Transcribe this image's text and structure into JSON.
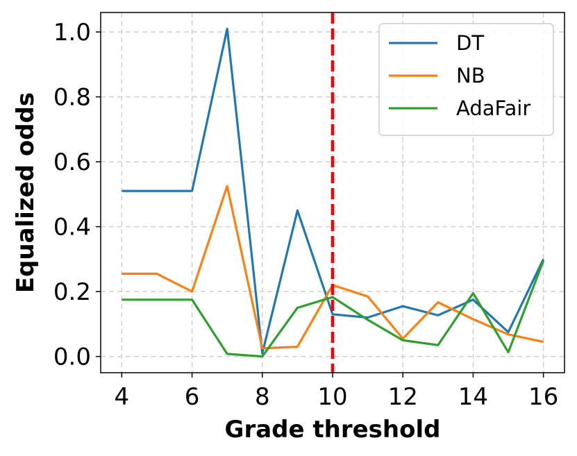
{
  "chart_data": {
    "type": "line",
    "title": "",
    "xlabel": "Grade threshold",
    "ylabel": "Equalized odds",
    "xlim": [
      3.4,
      16.6
    ],
    "ylim": [
      -0.05,
      1.06
    ],
    "xticks": [
      4,
      6,
      8,
      10,
      12,
      14,
      16
    ],
    "yticks": [
      0.0,
      0.2,
      0.4,
      0.6,
      0.8,
      1.0
    ],
    "xtick_labels": [
      "4",
      "6",
      "8",
      "10",
      "12",
      "14",
      "16"
    ],
    "ytick_labels": [
      "0.0",
      "0.2",
      "0.4",
      "0.6",
      "0.8",
      "1.0"
    ],
    "grid": true,
    "legend_position": "top-right",
    "x": [
      4,
      5,
      6,
      7,
      8,
      9,
      10,
      11,
      12,
      13,
      14,
      15,
      16
    ],
    "series": [
      {
        "name": "DT",
        "color": "#1f77b4",
        "values": [
          0.51,
          0.51,
          0.51,
          1.01,
          0.01,
          0.45,
          0.13,
          0.12,
          0.155,
          0.127,
          0.175,
          0.075,
          0.3
        ]
      },
      {
        "name": "NB",
        "color": "#ff7f0e",
        "values": [
          0.255,
          0.255,
          0.2,
          0.525,
          0.025,
          0.03,
          0.22,
          0.185,
          0.055,
          0.167,
          0.115,
          0.068,
          0.045
        ]
      },
      {
        "name": "AdaFair",
        "color": "#2ca02c",
        "values": [
          0.175,
          0.175,
          0.175,
          0.008,
          0.0,
          0.15,
          0.183,
          0.113,
          0.05,
          0.035,
          0.195,
          0.013,
          0.295
        ]
      }
    ],
    "annotations": [
      {
        "type": "vertical-line",
        "x": 10,
        "color": "#ff0000",
        "style": "dashed"
      }
    ]
  }
}
